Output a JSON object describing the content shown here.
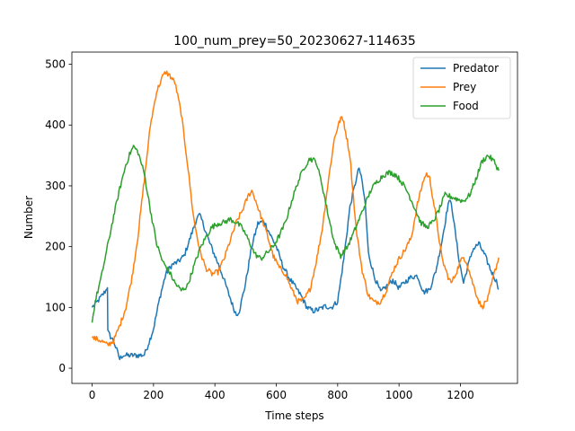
{
  "chart_data": {
    "type": "line",
    "title": "100_num_prey=50_20230627-114635",
    "xlabel": "Time steps",
    "ylabel": "Number",
    "xlim": [
      -66,
      1386
    ],
    "ylim": [
      -25,
      520
    ],
    "xticks": [
      0,
      200,
      400,
      600,
      800,
      1000,
      1200
    ],
    "yticks": [
      0,
      100,
      200,
      300,
      400,
      500
    ],
    "grid": false,
    "legend_position": "top-right",
    "series": [
      {
        "name": "Predator",
        "color": "#1f77b4",
        "points": [
          [
            0,
            100
          ],
          [
            15,
            108
          ],
          [
            30,
            118
          ],
          [
            45,
            128
          ],
          [
            50,
            135
          ],
          [
            51,
            60
          ],
          [
            60,
            52
          ],
          [
            70,
            45
          ],
          [
            80,
            30
          ],
          [
            90,
            15
          ],
          [
            100,
            22
          ],
          [
            110,
            21
          ],
          [
            130,
            21
          ],
          [
            150,
            21
          ],
          [
            170,
            22
          ],
          [
            180,
            35
          ],
          [
            200,
            65
          ],
          [
            220,
            115
          ],
          [
            240,
            155
          ],
          [
            260,
            170
          ],
          [
            280,
            175
          ],
          [
            300,
            185
          ],
          [
            320,
            215
          ],
          [
            340,
            245
          ],
          [
            350,
            252
          ],
          [
            360,
            240
          ],
          [
            380,
            210
          ],
          [
            400,
            185
          ],
          [
            420,
            160
          ],
          [
            440,
            130
          ],
          [
            460,
            100
          ],
          [
            470,
            88
          ],
          [
            480,
            95
          ],
          [
            500,
            140
          ],
          [
            520,
            200
          ],
          [
            540,
            238
          ],
          [
            560,
            242
          ],
          [
            580,
            220
          ],
          [
            600,
            200
          ],
          [
            620,
            170
          ],
          [
            640,
            150
          ],
          [
            660,
            135
          ],
          [
            680,
            120
          ],
          [
            700,
            100
          ],
          [
            720,
            94
          ],
          [
            740,
            97
          ],
          [
            760,
            102
          ],
          [
            780,
            100
          ],
          [
            800,
            110
          ],
          [
            820,
            180
          ],
          [
            840,
            265
          ],
          [
            860,
            310
          ],
          [
            870,
            330
          ],
          [
            880,
            305
          ],
          [
            890,
            270
          ],
          [
            900,
            190
          ],
          [
            920,
            150
          ],
          [
            940,
            125
          ],
          [
            960,
            135
          ],
          [
            980,
            145
          ],
          [
            1000,
            132
          ],
          [
            1020,
            142
          ],
          [
            1040,
            150
          ],
          [
            1060,
            152
          ],
          [
            1080,
            125
          ],
          [
            1100,
            130
          ],
          [
            1120,
            160
          ],
          [
            1140,
            210
          ],
          [
            1160,
            270
          ],
          [
            1170,
            275
          ],
          [
            1180,
            235
          ],
          [
            1195,
            180
          ],
          [
            1210,
            140
          ],
          [
            1220,
            160
          ],
          [
            1240,
            195
          ],
          [
            1260,
            205
          ],
          [
            1280,
            185
          ],
          [
            1300,
            160
          ],
          [
            1320,
            140
          ],
          [
            1325,
            130
          ]
        ]
      },
      {
        "name": "Prey",
        "color": "#ff7f0e",
        "points": [
          [
            0,
            50
          ],
          [
            15,
            48
          ],
          [
            30,
            45
          ],
          [
            50,
            38
          ],
          [
            70,
            45
          ],
          [
            90,
            70
          ],
          [
            110,
            100
          ],
          [
            130,
            150
          ],
          [
            150,
            220
          ],
          [
            170,
            310
          ],
          [
            190,
            400
          ],
          [
            210,
            455
          ],
          [
            230,
            480
          ],
          [
            240,
            487
          ],
          [
            250,
            483
          ],
          [
            270,
            470
          ],
          [
            290,
            420
          ],
          [
            310,
            340
          ],
          [
            330,
            250
          ],
          [
            350,
            195
          ],
          [
            370,
            165
          ],
          [
            390,
            155
          ],
          [
            410,
            158
          ],
          [
            430,
            180
          ],
          [
            450,
            210
          ],
          [
            470,
            240
          ],
          [
            490,
            260
          ],
          [
            510,
            285
          ],
          [
            520,
            292
          ],
          [
            530,
            280
          ],
          [
            550,
            250
          ],
          [
            570,
            220
          ],
          [
            590,
            185
          ],
          [
            610,
            165
          ],
          [
            630,
            155
          ],
          [
            650,
            130
          ],
          [
            670,
            110
          ],
          [
            690,
            112
          ],
          [
            710,
            130
          ],
          [
            730,
            175
          ],
          [
            750,
            230
          ],
          [
            770,
            310
          ],
          [
            790,
            380
          ],
          [
            810,
            412
          ],
          [
            820,
            405
          ],
          [
            840,
            350
          ],
          [
            860,
            230
          ],
          [
            880,
            160
          ],
          [
            900,
            120
          ],
          [
            920,
            108
          ],
          [
            940,
            110
          ],
          [
            960,
            130
          ],
          [
            980,
            160
          ],
          [
            1000,
            180
          ],
          [
            1020,
            195
          ],
          [
            1040,
            215
          ],
          [
            1060,
            270
          ],
          [
            1080,
            310
          ],
          [
            1090,
            320
          ],
          [
            1100,
            312
          ],
          [
            1120,
            250
          ],
          [
            1140,
            180
          ],
          [
            1160,
            150
          ],
          [
            1170,
            140
          ],
          [
            1180,
            150
          ],
          [
            1200,
            175
          ],
          [
            1210,
            183
          ],
          [
            1220,
            175
          ],
          [
            1240,
            140
          ],
          [
            1260,
            110
          ],
          [
            1270,
            100
          ],
          [
            1290,
            115
          ],
          [
            1310,
            155
          ],
          [
            1325,
            182
          ]
        ]
      },
      {
        "name": "Food",
        "color": "#2ca02c",
        "points": [
          [
            0,
            75
          ],
          [
            10,
            110
          ],
          [
            30,
            150
          ],
          [
            50,
            200
          ],
          [
            70,
            250
          ],
          [
            90,
            295
          ],
          [
            110,
            335
          ],
          [
            125,
            355
          ],
          [
            135,
            365
          ],
          [
            150,
            355
          ],
          [
            170,
            320
          ],
          [
            190,
            260
          ],
          [
            210,
            205
          ],
          [
            230,
            175
          ],
          [
            250,
            160
          ],
          [
            270,
            140
          ],
          [
            290,
            128
          ],
          [
            310,
            135
          ],
          [
            330,
            165
          ],
          [
            350,
            195
          ],
          [
            370,
            215
          ],
          [
            390,
            232
          ],
          [
            410,
            238
          ],
          [
            430,
            240
          ],
          [
            450,
            245
          ],
          [
            470,
            240
          ],
          [
            490,
            230
          ],
          [
            510,
            210
          ],
          [
            530,
            188
          ],
          [
            550,
            180
          ],
          [
            570,
            190
          ],
          [
            590,
            200
          ],
          [
            610,
            218
          ],
          [
            630,
            240
          ],
          [
            650,
            275
          ],
          [
            670,
            305
          ],
          [
            690,
            330
          ],
          [
            710,
            345
          ],
          [
            730,
            340
          ],
          [
            750,
            300
          ],
          [
            770,
            250
          ],
          [
            790,
            205
          ],
          [
            810,
            185
          ],
          [
            830,
            198
          ],
          [
            850,
            220
          ],
          [
            870,
            245
          ],
          [
            890,
            270
          ],
          [
            910,
            295
          ],
          [
            930,
            308
          ],
          [
            950,
            318
          ],
          [
            970,
            322
          ],
          [
            990,
            318
          ],
          [
            1010,
            305
          ],
          [
            1030,
            288
          ],
          [
            1050,
            265
          ],
          [
            1070,
            240
          ],
          [
            1090,
            232
          ],
          [
            1110,
            240
          ],
          [
            1130,
            260
          ],
          [
            1150,
            285
          ],
          [
            1170,
            282
          ],
          [
            1190,
            278
          ],
          [
            1210,
            275
          ],
          [
            1230,
            285
          ],
          [
            1250,
            310
          ],
          [
            1270,
            340
          ],
          [
            1290,
            350
          ],
          [
            1310,
            340
          ],
          [
            1325,
            325
          ]
        ]
      }
    ]
  }
}
